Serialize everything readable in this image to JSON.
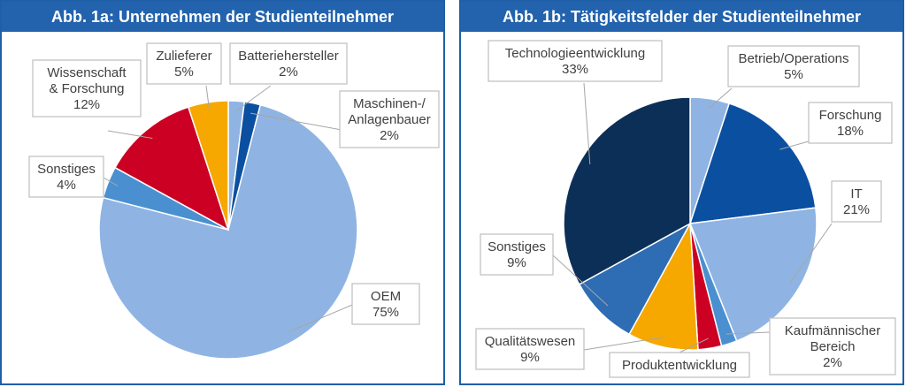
{
  "chart_data": [
    {
      "type": "pie",
      "title": "Abb. 1a: Unternehmen der Studienteilnehmer",
      "slices": [
        {
          "label": "Batteriehersteller",
          "value": 2,
          "display": "2%",
          "color": "#8fb4e3"
        },
        {
          "label": "Maschinen-/ Anlagenbauer",
          "value": 2,
          "display": "2%",
          "color": "#0b4fa0"
        },
        {
          "label": "OEM",
          "value": 75,
          "display": "75%",
          "color": "#8fb4e3"
        },
        {
          "label": "Sonstiges",
          "value": 4,
          "display": "4%",
          "color": "#4a90d0"
        },
        {
          "label": "Wissenschaft & Forschung",
          "value": 12,
          "display": "12%",
          "color": "#cc0022"
        },
        {
          "label": "Zulieferer",
          "value": 5,
          "display": "5%",
          "color": "#f6a800"
        }
      ],
      "label_lines": {
        "Batteriehersteller": [
          "Batteriehersteller",
          "2%"
        ],
        "Maschinen-/ Anlagenbauer": [
          "Maschinen-/",
          "Anlagenbauer",
          "2%"
        ],
        "OEM": [
          "OEM",
          "75%"
        ],
        "Sonstiges": [
          "Sonstiges",
          "4%"
        ],
        "Wissenschaft & Forschung": [
          "Wissenschaft",
          "& Forschung",
          "12%"
        ],
        "Zulieferer": [
          "Zulieferer",
          "5%"
        ]
      }
    },
    {
      "type": "pie",
      "title": "Abb. 1b: Tätigkeitsfelder der Studienteilnehmer",
      "slices": [
        {
          "label": "Betrieb/Operations",
          "value": 5,
          "display": "5%",
          "color": "#8fb4e3"
        },
        {
          "label": "Forschung",
          "value": 18,
          "display": "18%",
          "color": "#0b4fa0"
        },
        {
          "label": "IT",
          "value": 21,
          "display": "21%",
          "color": "#8fb4e3"
        },
        {
          "label": "Kaufmännischer Bereich",
          "value": 2,
          "display": "2%",
          "color": "#4a90d0"
        },
        {
          "label": "Produktentwicklung",
          "value": 3,
          "display": "",
          "color": "#cc0022"
        },
        {
          "label": "Qualitätswesen",
          "value": 9,
          "display": "9%",
          "color": "#f6a800"
        },
        {
          "label": "Sonstiges",
          "value": 9,
          "display": "9%",
          "color": "#2e6db4"
        },
        {
          "label": "Technologieentwicklung",
          "value": 33,
          "display": "33%",
          "color": "#0c2f57"
        }
      ],
      "label_lines": {
        "Betrieb/Operations": [
          "Betrieb/Operations",
          "5%"
        ],
        "Forschung": [
          "Forschung",
          "18%"
        ],
        "IT": [
          "IT",
          "21%"
        ],
        "Kaufmännischer Bereich": [
          "Kaufmännischer",
          "Bereich",
          "2%"
        ],
        "Produktentwicklung": [
          "Produktentwicklung"
        ],
        "Qualitätswesen": [
          "Qualitätswesen",
          "9%"
        ],
        "Sonstiges": [
          "Sonstiges",
          "9%"
        ],
        "Technologieentwicklung": [
          "Technologieentwicklung",
          "33%"
        ]
      }
    }
  ]
}
